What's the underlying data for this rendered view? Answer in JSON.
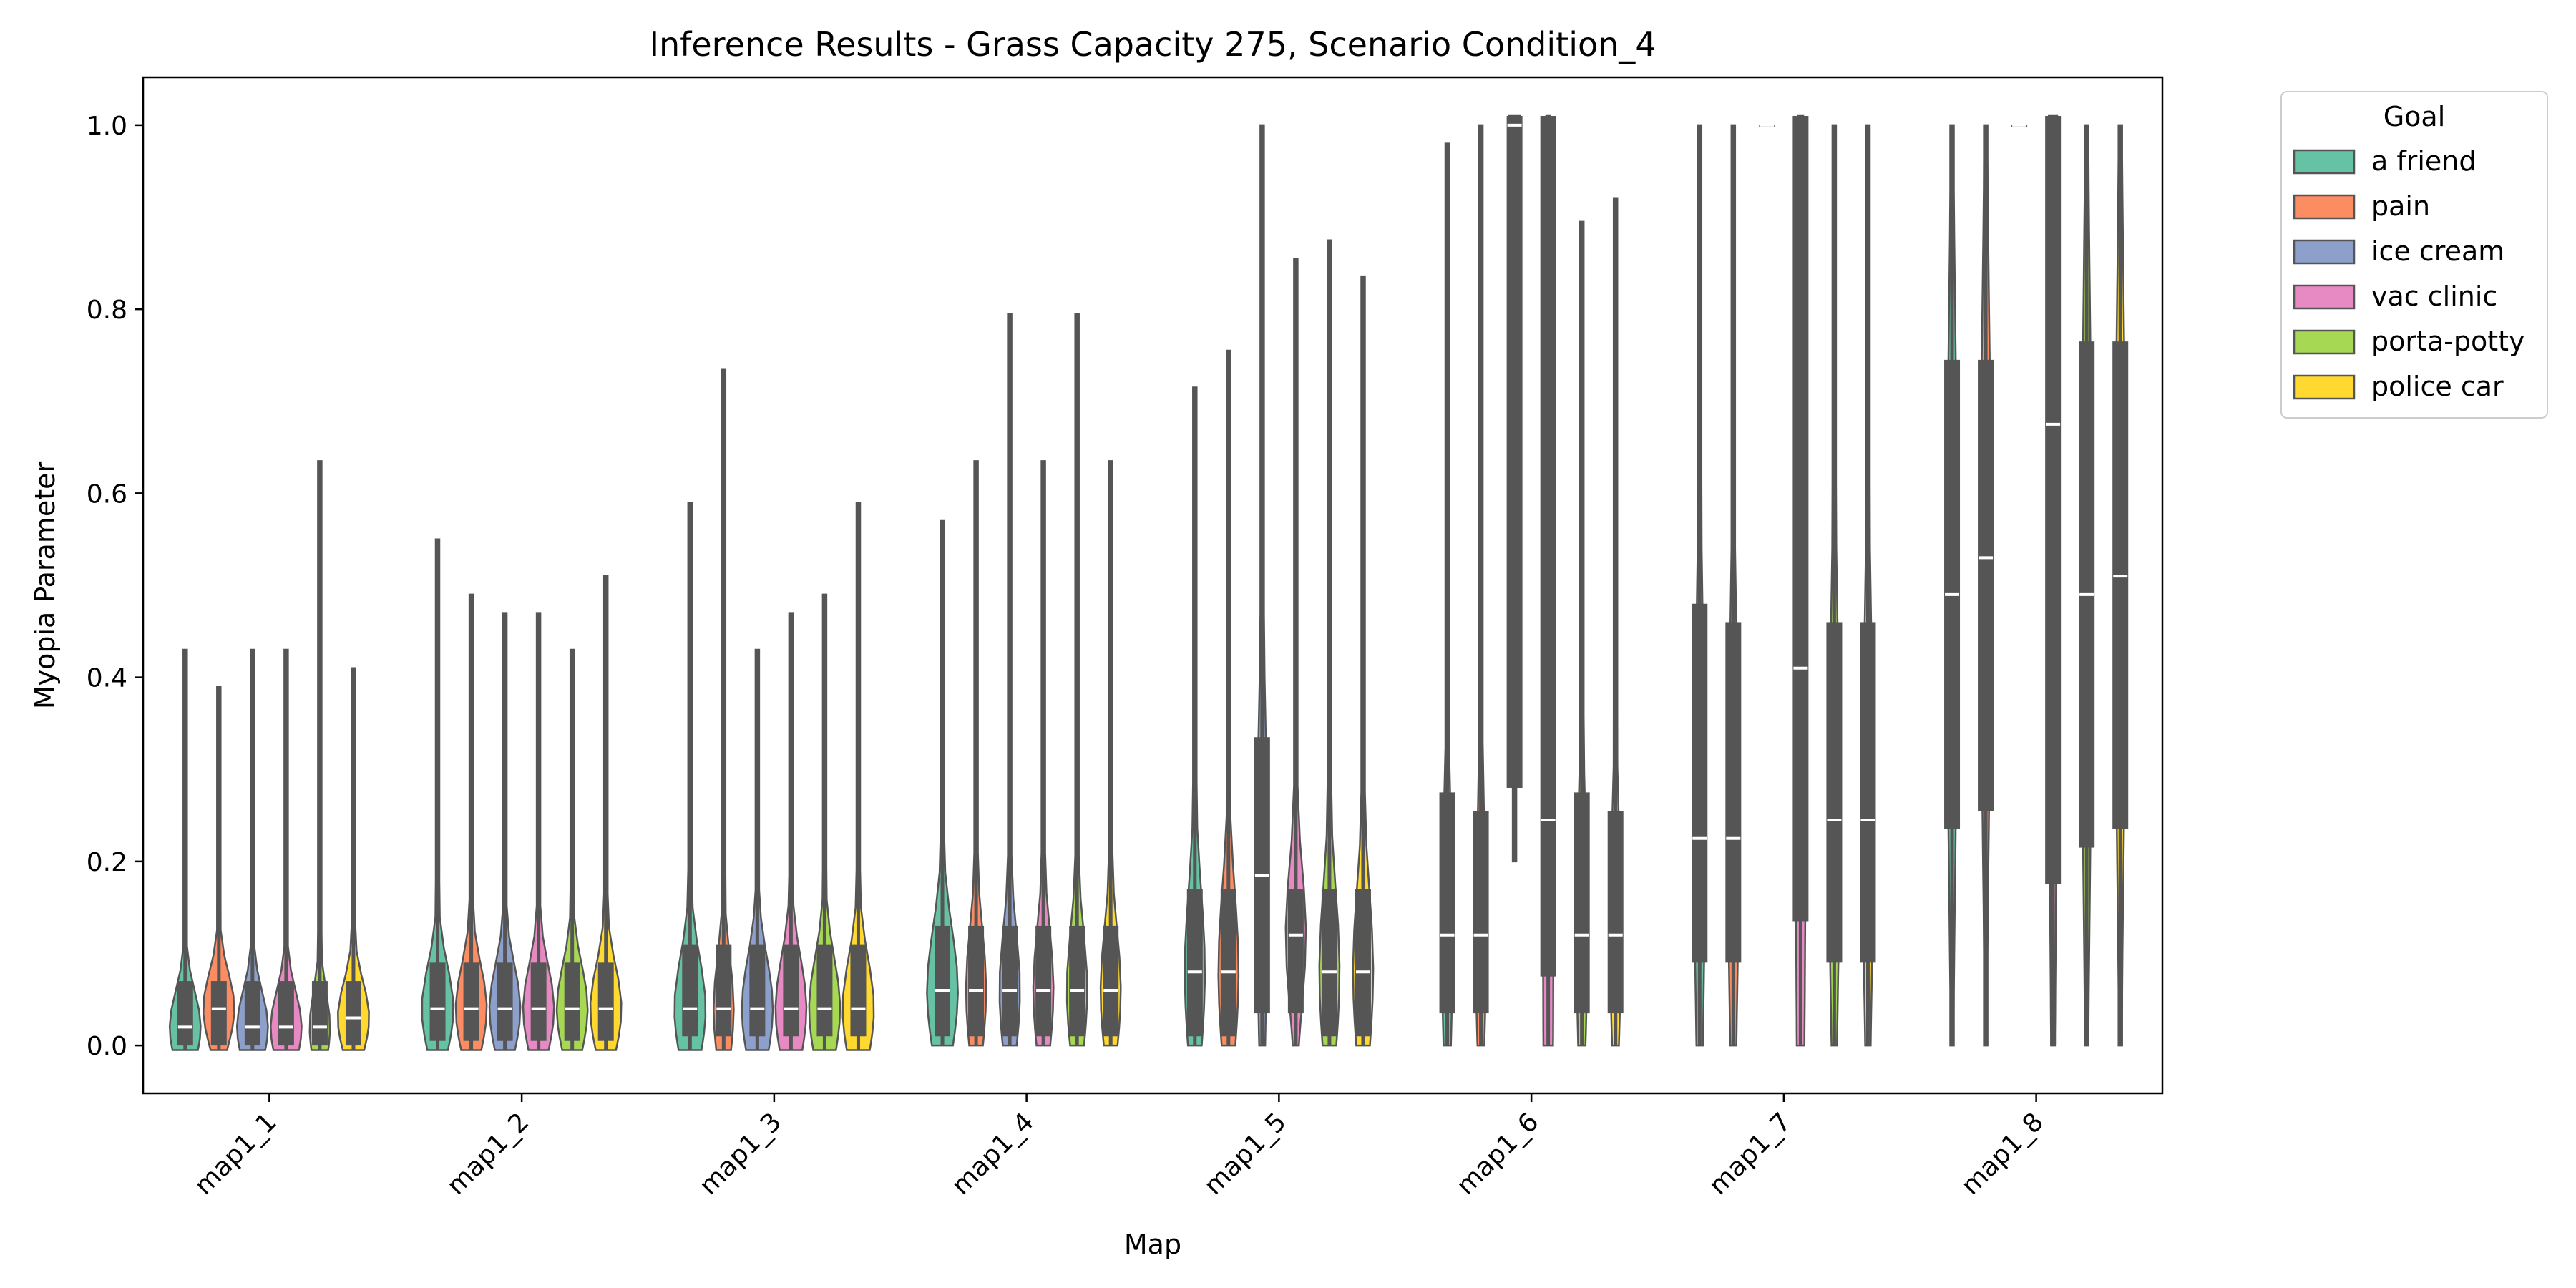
{
  "chart_data": {
    "type": "violin",
    "title": "Inference Results - Grass Capacity 275, Scenario Condition_4",
    "xlabel": "Map",
    "ylabel": "Myopia Parameter",
    "ylim": [
      -0.052,
      1.052
    ],
    "yticks": [
      "0.0",
      "0.2",
      "0.4",
      "0.6",
      "0.8",
      "1.0"
    ],
    "grid": false,
    "categories": [
      "map1_1",
      "map1_2",
      "map1_3",
      "map1_4",
      "map1_5",
      "map1_6",
      "map1_7",
      "map1_8"
    ],
    "legend": {
      "title": "Goal",
      "placement": "upper-left outside right"
    },
    "series": [
      {
        "name": "a friend",
        "color": "#66c2a5",
        "stats": [
          {
            "min": -0.005,
            "q1": 0.0,
            "median": 0.02,
            "q3": 0.07,
            "max": 0.43
          },
          {
            "min": -0.005,
            "q1": 0.005,
            "median": 0.04,
            "q3": 0.09,
            "max": 0.55
          },
          {
            "min": -0.005,
            "q1": 0.01,
            "median": 0.04,
            "q3": 0.11,
            "max": 0.59
          },
          {
            "min": 0.0,
            "q1": 0.01,
            "median": 0.06,
            "q3": 0.13,
            "max": 0.57
          },
          {
            "min": 0.0,
            "q1": 0.01,
            "median": 0.08,
            "q3": 0.17,
            "max": 0.715
          },
          {
            "min": 0.0,
            "q1": 0.035,
            "median": 0.12,
            "q3": 0.275,
            "max": 0.98
          },
          {
            "min": 0.0,
            "q1": 0.09,
            "median": 0.225,
            "q3": 0.48,
            "max": 1.0
          },
          {
            "min": 0.0,
            "q1": 0.235,
            "median": 0.49,
            "q3": 0.745,
            "max": 1.0
          }
        ]
      },
      {
        "name": "pain",
        "color": "#fc8d62",
        "stats": [
          {
            "min": -0.005,
            "q1": 0.0,
            "median": 0.04,
            "q3": 0.07,
            "max": 0.39
          },
          {
            "min": -0.005,
            "q1": 0.005,
            "median": 0.04,
            "q3": 0.09,
            "max": 0.49
          },
          {
            "min": -0.005,
            "q1": 0.01,
            "median": 0.04,
            "q3": 0.11,
            "max": 0.735
          },
          {
            "min": 0.0,
            "q1": 0.01,
            "median": 0.06,
            "q3": 0.13,
            "max": 0.635
          },
          {
            "min": 0.0,
            "q1": 0.01,
            "median": 0.08,
            "q3": 0.17,
            "max": 0.755
          },
          {
            "min": 0.0,
            "q1": 0.035,
            "median": 0.12,
            "q3": 0.255,
            "max": 1.0
          },
          {
            "min": 0.0,
            "q1": 0.09,
            "median": 0.225,
            "q3": 0.46,
            "max": 1.0
          },
          {
            "min": 0.0,
            "q1": 0.255,
            "median": 0.53,
            "q3": 0.745,
            "max": 1.0
          }
        ]
      },
      {
        "name": "ice cream",
        "color": "#8da0cb",
        "stats": [
          {
            "min": -0.005,
            "q1": 0.0,
            "median": 0.02,
            "q3": 0.07,
            "max": 0.43
          },
          {
            "min": -0.005,
            "q1": 0.005,
            "median": 0.04,
            "q3": 0.09,
            "max": 0.47
          },
          {
            "min": -0.005,
            "q1": 0.01,
            "median": 0.04,
            "q3": 0.11,
            "max": 0.43
          },
          {
            "min": 0.0,
            "q1": 0.01,
            "median": 0.06,
            "q3": 0.13,
            "max": 0.795
          },
          {
            "min": 0.0,
            "q1": 0.035,
            "median": 0.185,
            "q3": 0.335,
            "max": 1.0
          },
          {
            "min": 0.2,
            "q1": 0.28,
            "median": 1.0,
            "q3": 1.01,
            "max": 1.01
          },
          {
            "min": 1.0,
            "q1": 1.0,
            "median": 1.0,
            "q3": 1.0,
            "max": 1.0
          },
          {
            "min": 1.0,
            "q1": 1.0,
            "median": 1.0,
            "q3": 1.0,
            "max": 1.0
          }
        ]
      },
      {
        "name": "vac clinic",
        "color": "#e78ac3",
        "stats": [
          {
            "min": -0.005,
            "q1": 0.0,
            "median": 0.02,
            "q3": 0.07,
            "max": 0.43
          },
          {
            "min": -0.005,
            "q1": 0.005,
            "median": 0.04,
            "q3": 0.09,
            "max": 0.47
          },
          {
            "min": -0.005,
            "q1": 0.01,
            "median": 0.04,
            "q3": 0.11,
            "max": 0.47
          },
          {
            "min": 0.0,
            "q1": 0.01,
            "median": 0.06,
            "q3": 0.13,
            "max": 0.635
          },
          {
            "min": 0.0,
            "q1": 0.035,
            "median": 0.12,
            "q3": 0.17,
            "max": 0.855
          },
          {
            "min": 0.0,
            "q1": 0.075,
            "median": 0.245,
            "q3": 1.01,
            "max": 1.01
          },
          {
            "min": 0.0,
            "q1": 0.135,
            "median": 0.41,
            "q3": 1.01,
            "max": 1.01
          },
          {
            "min": 0.0,
            "q1": 0.175,
            "median": 0.675,
            "q3": 1.01,
            "max": 1.01
          }
        ]
      },
      {
        "name": "porta-potty",
        "color": "#a6d854",
        "stats": [
          {
            "min": -0.005,
            "q1": 0.0,
            "median": 0.02,
            "q3": 0.07,
            "max": 0.635
          },
          {
            "min": -0.005,
            "q1": 0.005,
            "median": 0.04,
            "q3": 0.09,
            "max": 0.43
          },
          {
            "min": -0.005,
            "q1": 0.01,
            "median": 0.04,
            "q3": 0.11,
            "max": 0.49
          },
          {
            "min": 0.0,
            "q1": 0.01,
            "median": 0.06,
            "q3": 0.13,
            "max": 0.795
          },
          {
            "min": 0.0,
            "q1": 0.01,
            "median": 0.08,
            "q3": 0.17,
            "max": 0.875
          },
          {
            "min": 0.0,
            "q1": 0.035,
            "median": 0.12,
            "q3": 0.275,
            "max": 0.895
          },
          {
            "min": 0.0,
            "q1": 0.09,
            "median": 0.245,
            "q3": 0.46,
            "max": 1.0
          },
          {
            "min": 0.0,
            "q1": 0.215,
            "median": 0.49,
            "q3": 0.765,
            "max": 1.0
          }
        ]
      },
      {
        "name": "police car",
        "color": "#ffd92f",
        "stats": [
          {
            "min": -0.005,
            "q1": 0.0,
            "median": 0.03,
            "q3": 0.07,
            "max": 0.41
          },
          {
            "min": -0.005,
            "q1": 0.005,
            "median": 0.04,
            "q3": 0.09,
            "max": 0.51
          },
          {
            "min": -0.005,
            "q1": 0.01,
            "median": 0.04,
            "q3": 0.11,
            "max": 0.59
          },
          {
            "min": 0.0,
            "q1": 0.01,
            "median": 0.06,
            "q3": 0.13,
            "max": 0.635
          },
          {
            "min": 0.0,
            "q1": 0.01,
            "median": 0.08,
            "q3": 0.17,
            "max": 0.835
          },
          {
            "min": 0.0,
            "q1": 0.035,
            "median": 0.12,
            "q3": 0.255,
            "max": 0.92
          },
          {
            "min": 0.0,
            "q1": 0.09,
            "median": 0.245,
            "q3": 0.46,
            "max": 1.0
          },
          {
            "min": 0.0,
            "q1": 0.235,
            "median": 0.51,
            "q3": 0.765,
            "max": 1.0
          }
        ]
      }
    ]
  }
}
